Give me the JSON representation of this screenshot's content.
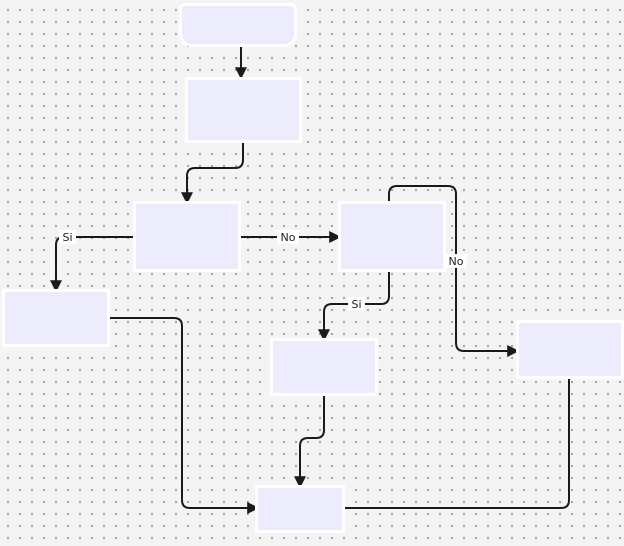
{
  "diagram": {
    "type": "flowchart",
    "nodes": [
      {
        "id": "start",
        "label": ""
      },
      {
        "id": "step1",
        "label": ""
      },
      {
        "id": "decision1",
        "label": ""
      },
      {
        "id": "yes-branch",
        "label": ""
      },
      {
        "id": "decision2",
        "label": ""
      },
      {
        "id": "yes-branch-2",
        "label": ""
      },
      {
        "id": "no-branch-2",
        "label": ""
      },
      {
        "id": "end",
        "label": ""
      }
    ],
    "edges": [
      {
        "from": "start",
        "to": "step1",
        "label": ""
      },
      {
        "from": "step1",
        "to": "decision1",
        "label": ""
      },
      {
        "from": "decision1",
        "to": "yes-branch",
        "label": "Si"
      },
      {
        "from": "decision1",
        "to": "decision2",
        "label": "No"
      },
      {
        "from": "decision2",
        "to": "yes-branch-2",
        "label": "Si"
      },
      {
        "from": "decision2",
        "to": "no-branch-2",
        "label": "No"
      },
      {
        "from": "yes-branch",
        "to": "end",
        "label": ""
      },
      {
        "from": "yes-branch-2",
        "to": "end",
        "label": ""
      },
      {
        "from": "no-branch-2",
        "to": "end",
        "label": ""
      }
    ],
    "colors": {
      "node_fill": "#ececfd",
      "edge": "#1a1a1a",
      "background": "#f4f4f4"
    }
  }
}
